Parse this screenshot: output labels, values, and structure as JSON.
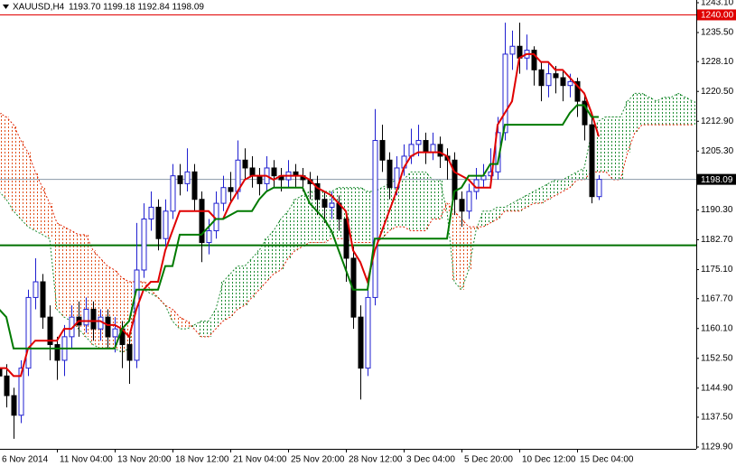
{
  "chart_data": {
    "type": "candlestick",
    "title": "XAUUSD,H4",
    "quote": "1193.70 1199.18 1192.84 1198.09",
    "categories": [
      "6 Nov 2014",
      null,
      null,
      null,
      null,
      null,
      null,
      null,
      "11 Nov 04:00",
      null,
      null,
      null,
      null,
      null,
      null,
      null,
      "13 Nov 20:00",
      null,
      null,
      null,
      null,
      null,
      null,
      null,
      "18 Nov 12:00",
      null,
      null,
      null,
      null,
      null,
      null,
      null,
      "21 Nov 04:00",
      null,
      null,
      null,
      null,
      null,
      null,
      null,
      "25 Nov 20:00",
      null,
      null,
      null,
      null,
      null,
      null,
      null,
      "28 Nov 12:00",
      null,
      null,
      null,
      null,
      null,
      null,
      null,
      "3 Dec 04:00",
      null,
      null,
      null,
      null,
      null,
      null,
      null,
      "5 Dec 20:00",
      null,
      null,
      null,
      null,
      null,
      null,
      null,
      "10 Dec 12:00",
      null,
      null,
      null,
      null,
      null,
      null,
      null,
      "15 Dec 04:00",
      null,
      null,
      null
    ],
    "open": [
      1150,
      1148,
      1143,
      1138,
      1150,
      1168,
      1172,
      1163,
      1156,
      1152,
      1158,
      1163,
      1161,
      1165,
      1160,
      1163,
      1158,
      1160,
      1156,
      1152,
      1175,
      1188,
      1191,
      1183,
      1190,
      1199,
      1197,
      1200,
      1193,
      1182,
      1185,
      1192,
      1196,
      1195,
      1203,
      1201,
      1199,
      1197,
      1201,
      1199,
      1198,
      1200,
      1199,
      1198,
      1197,
      1193,
      1191,
      1192,
      1188,
      1178,
      1163,
      1150,
      1168,
      1208,
      1203,
      1196,
      1201,
      1204,
      1207,
      1208,
      1205,
      1207,
      1204,
      1203,
      1193,
      1190,
      1195,
      1198,
      1199,
      1200,
      1210,
      1230,
      1232,
      1229,
      1231,
      1226,
      1222,
      1225,
      1224,
      1222,
      1223,
      1218,
      1212,
      1193.7
    ],
    "high": [
      1153,
      1151,
      1145,
      1152,
      1170,
      1178,
      1174,
      1166,
      1158,
      1161,
      1166,
      1167,
      1168,
      1167,
      1165,
      1165,
      1163,
      1162,
      1158,
      1187,
      1192,
      1195,
      1193,
      1193,
      1202,
      1202,
      1206,
      1202,
      1195,
      1188,
      1195,
      1199,
      1200,
      1208,
      1206,
      1204,
      1201,
      1204,
      1203,
      1201,
      1203,
      1202,
      1201,
      1200,
      1199,
      1195,
      1195,
      1194,
      1190,
      1181,
      1166,
      1170,
      1216,
      1212,
      1205,
      1204,
      1207,
      1211,
      1212,
      1210,
      1210,
      1209,
      1206,
      1205,
      1195,
      1197,
      1201,
      1202,
      1206,
      1214,
      1238,
      1236,
      1238,
      1235,
      1232,
      1228,
      1228,
      1227,
      1226,
      1225,
      1224,
      1220,
      1214,
      1199.18
    ],
    "low": [
      1145,
      1140,
      1132,
      1136,
      1148,
      1165,
      1160,
      1152,
      1147,
      1148,
      1155,
      1158,
      1159,
      1157,
      1157,
      1155,
      1154,
      1150,
      1146,
      1150,
      1173,
      1185,
      1180,
      1181,
      1188,
      1194,
      1195,
      1190,
      1177,
      1179,
      1183,
      1190,
      1192,
      1193,
      1198,
      1196,
      1194,
      1195,
      1196,
      1195,
      1196,
      1196,
      1195,
      1193,
      1189,
      1187,
      1188,
      1185,
      1172,
      1160,
      1142,
      1148,
      1166,
      1200,
      1193,
      1194,
      1199,
      1202,
      1204,
      1202,
      1203,
      1201,
      1198,
      1189,
      1186,
      1188,
      1193,
      1196,
      1197,
      1198,
      1208,
      1226,
      1225,
      1226,
      1222,
      1218,
      1219,
      1220,
      1218,
      1219,
      1214,
      1208,
      1192,
      1192.84
    ],
    "close": [
      1148,
      1143,
      1138,
      1150,
      1168,
      1172,
      1163,
      1156,
      1152,
      1158,
      1163,
      1161,
      1165,
      1160,
      1163,
      1158,
      1160,
      1156,
      1152,
      1175,
      1188,
      1191,
      1183,
      1190,
      1199,
      1197,
      1200,
      1193,
      1182,
      1185,
      1192,
      1196,
      1195,
      1203,
      1201,
      1199,
      1197,
      1201,
      1199,
      1198,
      1200,
      1199,
      1198,
      1197,
      1193,
      1191,
      1192,
      1188,
      1178,
      1163,
      1150,
      1168,
      1208,
      1203,
      1196,
      1201,
      1204,
      1207,
      1208,
      1205,
      1207,
      1204,
      1203,
      1193,
      1190,
      1195,
      1198,
      1199,
      1200,
      1210,
      1230,
      1232,
      1229,
      1231,
      1226,
      1222,
      1225,
      1224,
      1222,
      1223,
      1218,
      1212,
      1193.7,
      1198.09
    ],
    "up_color": "#1f1fd0",
    "down_color": "#000000",
    "lines": [
      {
        "color": "#e00000",
        "values": [
          1150,
          1150,
          1148,
          1148,
          1155,
          1157,
          1157,
          1157,
          1157,
          1160,
          1160,
          1162,
          1162,
          1162,
          1162,
          1161,
          1161,
          1160,
          1158,
          1165,
          1170,
          1172,
          1172,
          1180,
          1185,
          1190,
          1190,
          1190,
          1190,
          1190,
          1188,
          1188,
          1192,
          1195,
          1198,
          1199,
          1199,
          1199,
          1198,
          1199,
          1199,
          1199,
          1199,
          1198,
          1196,
          1195,
          1194,
          1192,
          1190,
          1180,
          1177,
          1172,
          1180,
          1185,
          1190,
          1195,
          1201,
          1204,
          1205,
          1205,
          1205,
          1205,
          1204,
          1200,
          1199,
          1198,
          1196,
          1196,
          1196,
          1212,
          1215,
          1218,
          1229,
          1230,
          1230,
          1228,
          1228,
          1226,
          1226,
          1224,
          1222,
          1220,
          1215,
          1209
        ]
      },
      {
        "color": "#007a00",
        "values": [
          1165,
          1163,
          1155,
          1155,
          1155,
          1155,
          1155,
          1155,
          1155,
          1155,
          1155,
          1155,
          1155,
          1155,
          1155,
          1155,
          1155,
          1160,
          1162,
          1170,
          1170,
          1170,
          1170,
          1176,
          1176,
          1184,
          1184,
          1184,
          1184,
          1186,
          1188,
          1188,
          1189,
          1190,
          1190,
          1190,
          1193,
          1195,
          1196,
          1196,
          1196,
          1196,
          1196,
          1192,
          1190,
          1188,
          1185,
          1180,
          1175,
          1170,
          1170,
          1170,
          1183,
          1183,
          1183,
          1183,
          1183,
          1183,
          1183,
          1183,
          1183,
          1183,
          1183,
          1195,
          1196,
          1199,
          1199,
          1199,
          1202,
          1202,
          1212,
          1212,
          1212,
          1212,
          1212,
          1212,
          1212,
          1212,
          1212,
          1215,
          1217,
          1217,
          1214,
          1214
        ]
      }
    ],
    "cloud": {
      "span_a": {
        "color": "#1e8c32",
        "values": [
          1195,
          1193,
          1190,
          1188,
          1186,
          1185,
          1184,
          1183,
          1165,
          1163,
          1162,
          1160,
          1158,
          1156,
          1155,
          1155,
          1155,
          1154,
          1155,
          1170,
          1170,
          1169,
          1168,
          1166,
          1162,
          1160,
          1160,
          1161,
          1162,
          1162,
          1165,
          1172,
          1174,
          1176,
          1176,
          1178,
          1180,
          1183,
          1185,
          1188,
          1190,
          1193,
          1194,
          1195,
          1195,
          1195,
          1195,
          1196,
          1196,
          1196,
          1196,
          1195,
          1195,
          1196,
          1197,
          1198,
          1198,
          1200,
          1200,
          1200,
          1198,
          1198,
          1190,
          1172,
          1170,
          1175,
          1185,
          1190,
          1190,
          1191,
          1191,
          1192,
          1193,
          1194,
          1195,
          1196,
          1197,
          1198,
          1198,
          1199,
          1200,
          1201,
          1210,
          1213,
          1214,
          1214,
          1214,
          1218,
          1220,
          1220,
          1219,
          1218,
          1219,
          1219,
          1220,
          1219,
          1218
        ]
      },
      "span_b": {
        "color": "#e02000",
        "values": [
          1215,
          1214,
          1212,
          1208,
          1205,
          1200,
          1196,
          1192,
          1187,
          1186,
          1185,
          1184,
          1184,
          1180,
          1178,
          1176,
          1175,
          1173,
          1172,
          1172,
          1172,
          1170,
          1168,
          1166,
          1165,
          1163,
          1162,
          1160,
          1158,
          1158,
          1160,
          1162,
          1163,
          1165,
          1166,
          1168,
          1170,
          1172,
          1174,
          1175,
          1178,
          1180,
          1181,
          1182,
          1182,
          1182,
          1183,
          1183,
          1183,
          1182,
          1182,
          1182,
          1182,
          1183,
          1185,
          1186,
          1186,
          1185,
          1185,
          1185,
          1188,
          1188,
          1192,
          1190,
          1188,
          1186,
          1186,
          1186,
          1187,
          1188,
          1190,
          1190,
          1190,
          1191,
          1192,
          1192,
          1193,
          1194,
          1195,
          1196,
          1198,
          1198,
          1200,
          1200,
          1200,
          1198,
          1198,
          1205,
          1210,
          1212,
          1212,
          1212,
          1212,
          1212,
          1212,
          1212,
          1212
        ]
      },
      "up_color": "#1e8c32",
      "down_color": "#e0501a"
    },
    "levels": [
      {
        "value": 1240,
        "label": "1240.00",
        "color": "#e00000",
        "width": 1
      },
      {
        "value": 1198.09,
        "color": "#8a9aa8",
        "width": 1,
        "labeled": true
      },
      {
        "value": 1181.3,
        "color": "#007000",
        "width": 2
      }
    ],
    "ylim": [
      1129.9,
      1243.1
    ],
    "yticks": [
      {
        "value": 1243.1,
        "label": "1243.10"
      },
      {
        "value": 1235.5,
        "label": "1235.50"
      },
      {
        "value": 1228.1,
        "label": "1228.10"
      },
      {
        "value": 1220.5,
        "label": "1220.50"
      },
      {
        "value": 1212.9,
        "label": "1212.90"
      },
      {
        "value": 1205.3,
        "label": "1205.30"
      },
      {
        "value": 1190.3,
        "label": "1190.30"
      },
      {
        "value": 1182.7,
        "label": "1182.70"
      },
      {
        "value": 1175.1,
        "label": "1175.10"
      },
      {
        "value": 1167.7,
        "label": "1167.70"
      },
      {
        "value": 1160.1,
        "label": "1160.10"
      },
      {
        "value": 1152.5,
        "label": "1152.50"
      },
      {
        "value": 1144.9,
        "label": "1144.90"
      },
      {
        "value": 1137.5,
        "label": "1137.50"
      },
      {
        "value": 1129.9,
        "label": "1129.90"
      }
    ],
    "grid": false
  }
}
